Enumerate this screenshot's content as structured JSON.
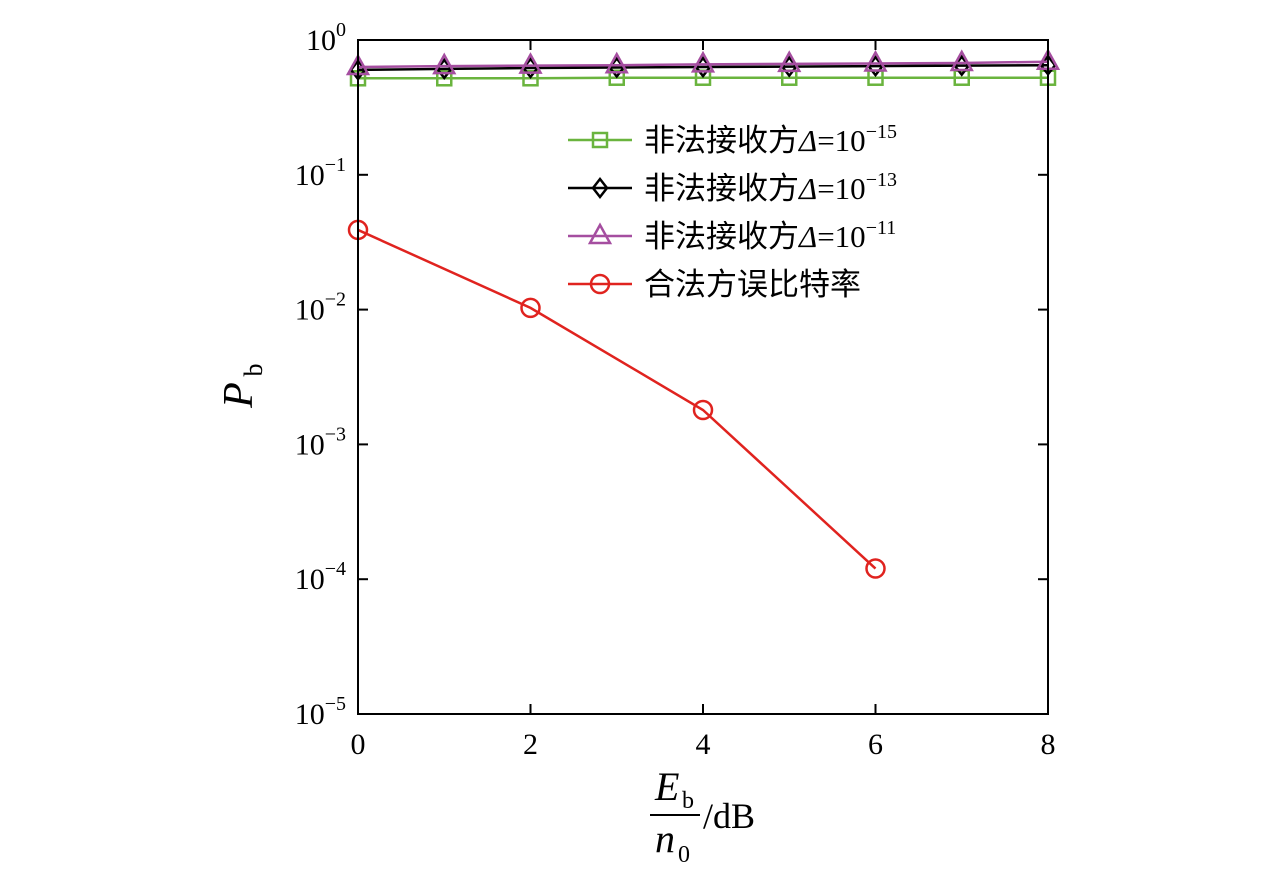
{
  "chart_data": {
    "type": "line",
    "xlabel": {
      "numerator": "E",
      "numerator_sub": "b",
      "denominator": "n",
      "denominator_sub": "0",
      "unit": "/dB"
    },
    "ylabel": {
      "main": "P",
      "sub": "b"
    },
    "xlim": [
      0,
      8
    ],
    "ylim": [
      1e-05,
      1
    ],
    "yscale": "log",
    "x_ticks": [
      "0",
      "2",
      "4",
      "6",
      "8"
    ],
    "y_ticks": [
      {
        "value": 1,
        "base": "10",
        "exp": "0"
      },
      {
        "value": 0.1,
        "base": "10",
        "exp": "−1"
      },
      {
        "value": 0.01,
        "base": "10",
        "exp": "−2"
      },
      {
        "value": 0.001,
        "base": "10",
        "exp": "−3"
      },
      {
        "value": 0.0001,
        "base": "10",
        "exp": "−4"
      },
      {
        "value": 1e-05,
        "base": "10",
        "exp": "−5"
      }
    ],
    "grid": false,
    "legend_position": "top-right",
    "series": [
      {
        "name_prefix": "非法接收方",
        "name_symbol": "Δ",
        "name_eq": "=10",
        "name_exp": "−15",
        "color": "#6ab43e",
        "marker": "square",
        "x": [
          0,
          1,
          2,
          3,
          4,
          5,
          6,
          7,
          8
        ],
        "y": [
          0.52,
          0.52,
          0.52,
          0.525,
          0.525,
          0.525,
          0.525,
          0.525,
          0.525
        ]
      },
      {
        "name_prefix": "非法接收方",
        "name_symbol": "Δ",
        "name_eq": "=10",
        "name_exp": "−13",
        "color": "#000000",
        "marker": "diamond",
        "x": [
          0,
          1,
          2,
          3,
          4,
          5,
          6,
          7,
          8
        ],
        "y": [
          0.6,
          0.61,
          0.62,
          0.625,
          0.63,
          0.635,
          0.64,
          0.645,
          0.65
        ]
      },
      {
        "name_prefix": "非法接收方",
        "name_symbol": "Δ",
        "name_eq": "=10",
        "name_exp": "−11",
        "color": "#a54ea0",
        "marker": "triangle",
        "x": [
          0,
          1,
          2,
          3,
          4,
          5,
          6,
          7,
          8
        ],
        "y": [
          0.63,
          0.64,
          0.645,
          0.65,
          0.66,
          0.665,
          0.67,
          0.675,
          0.69
        ]
      },
      {
        "name_prefix": "合法方误比特率",
        "name_symbol": "",
        "name_eq": "",
        "name_exp": "",
        "color": "#e0231f",
        "marker": "circle",
        "x": [
          0,
          2,
          4,
          6
        ],
        "y": [
          0.039,
          0.0103,
          0.0018,
          0.00012
        ]
      }
    ]
  }
}
